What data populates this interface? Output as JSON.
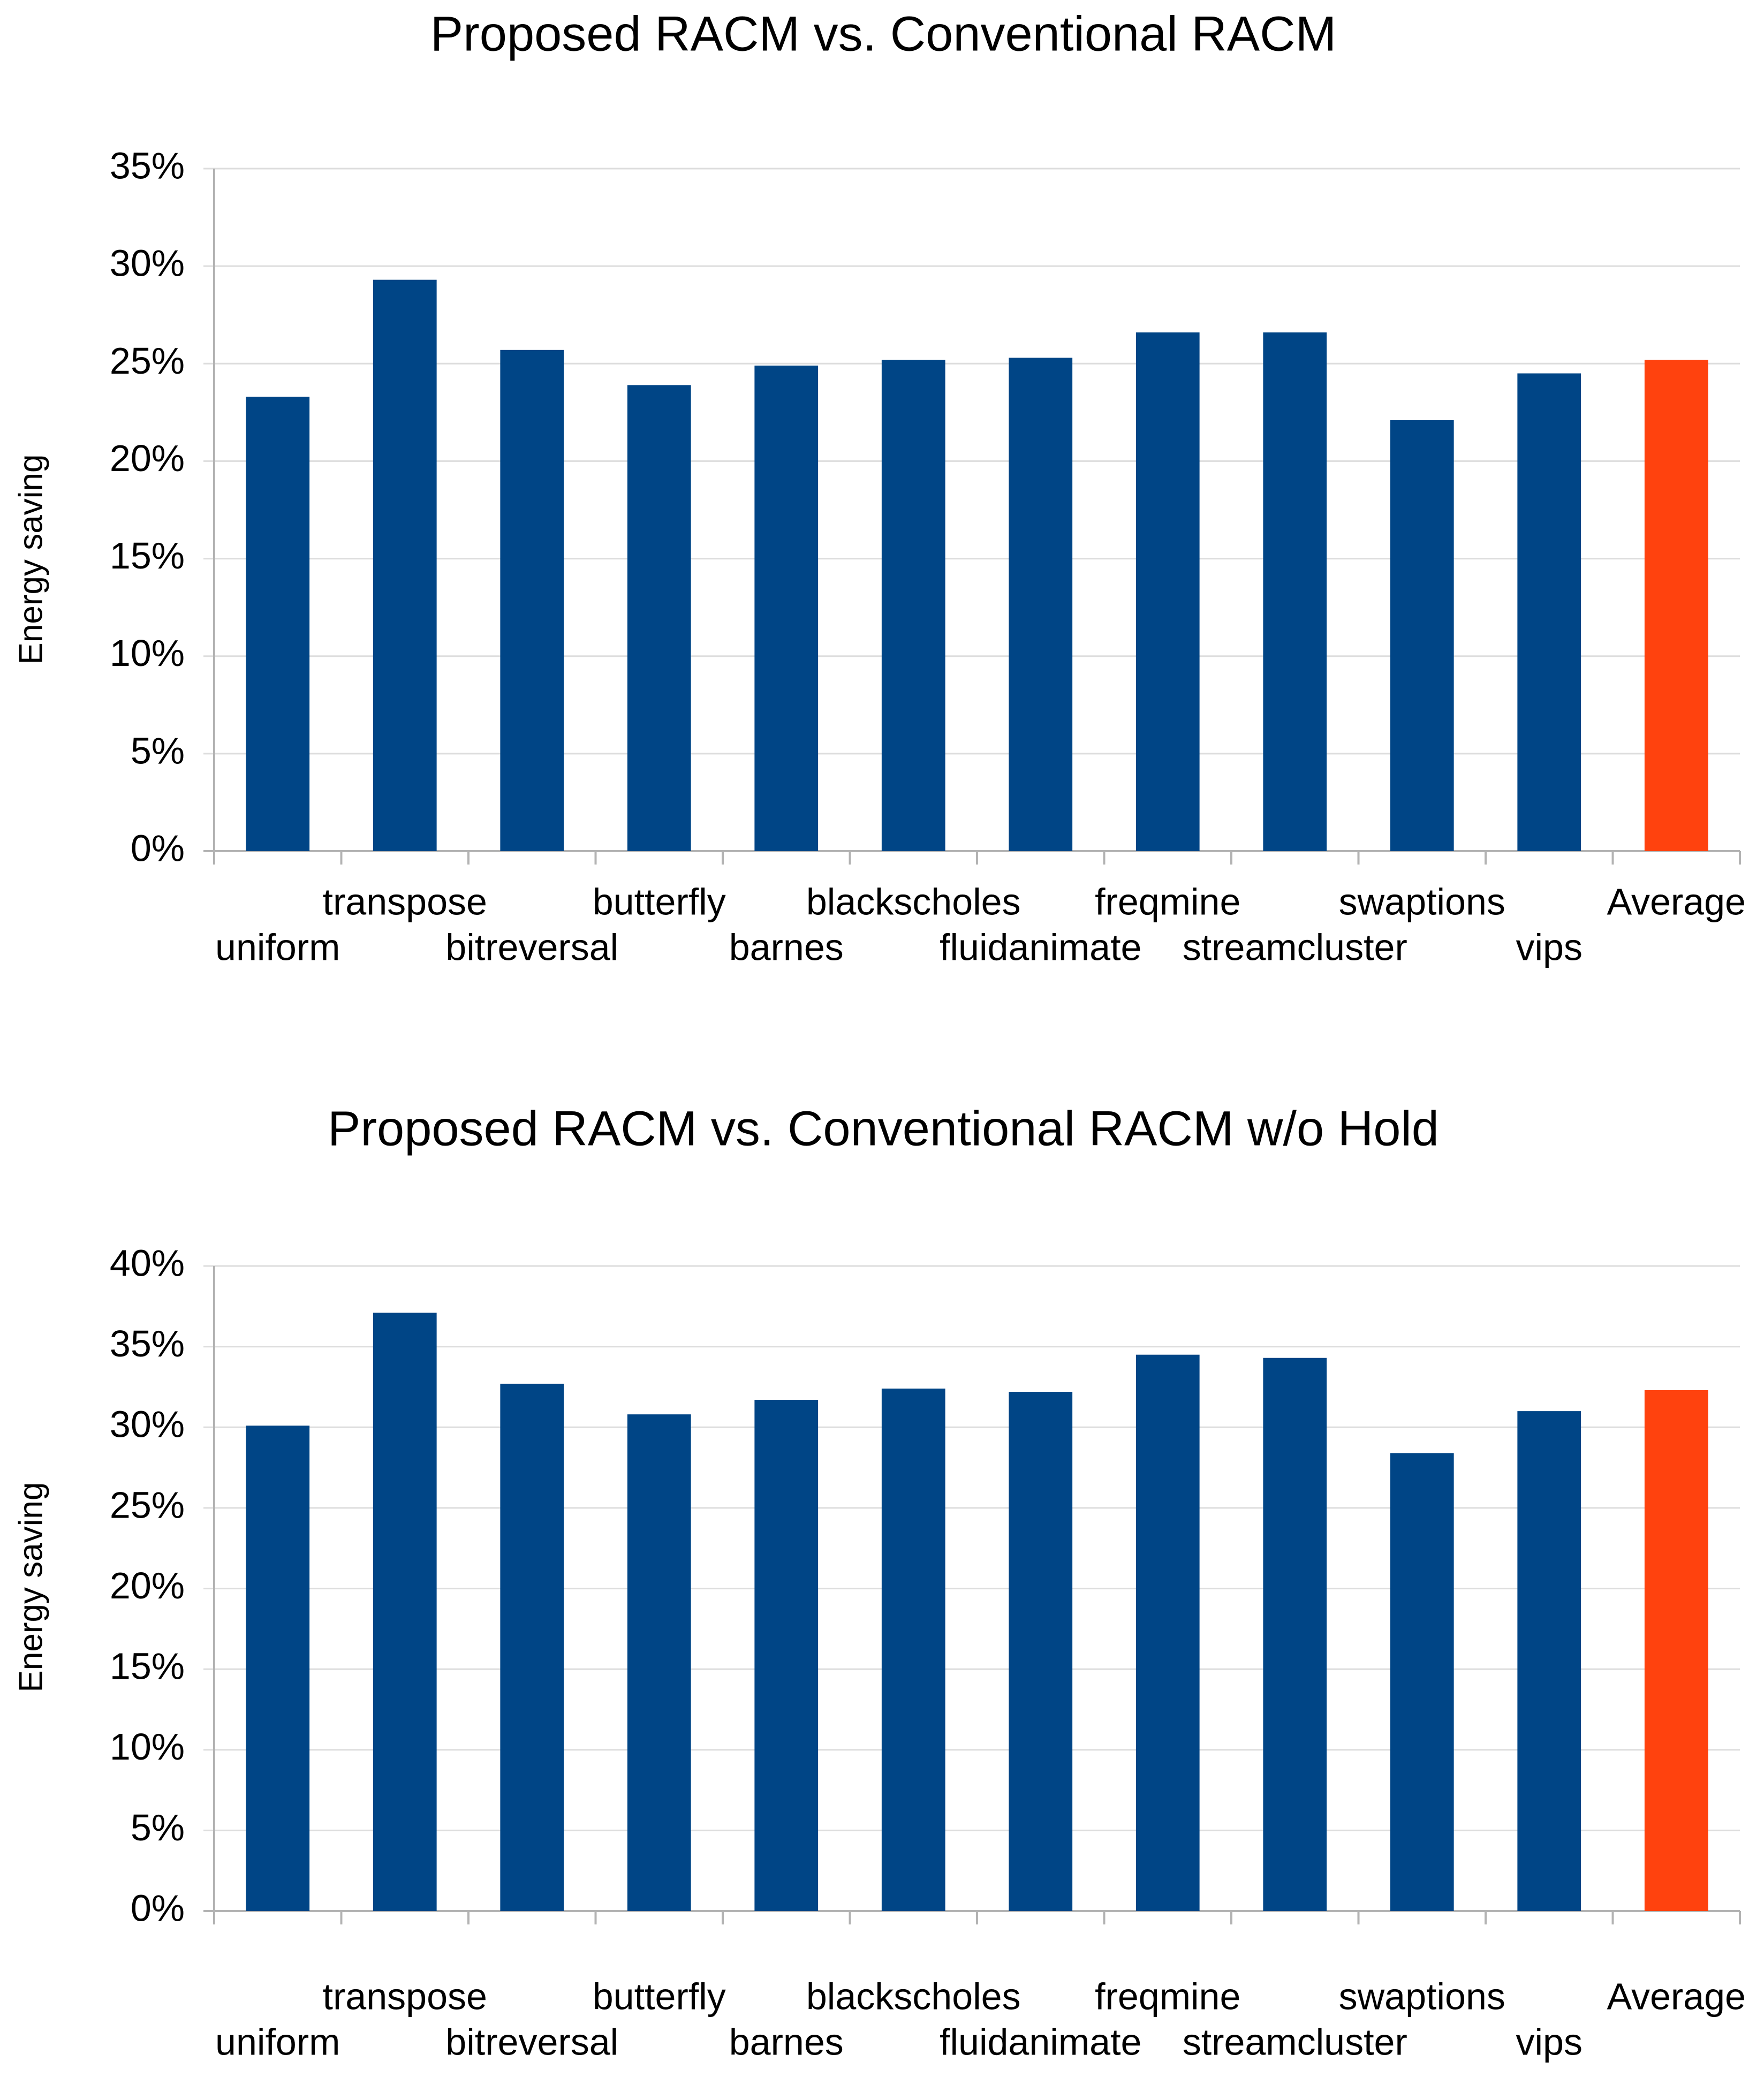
{
  "chart_data": [
    {
      "type": "bar",
      "title": "Proposed RACM vs. Conventional RACM",
      "xlabel": "",
      "ylabel": "Energy saving",
      "ylim": [
        0,
        0.35
      ],
      "yticks": [
        0,
        0.05,
        0.1,
        0.15,
        0.2,
        0.25,
        0.3,
        0.35
      ],
      "ytick_labels": [
        "0%",
        "5%",
        "10%",
        "15%",
        "20%",
        "25%",
        "30%",
        "35%"
      ],
      "grid": true,
      "categories": [
        "uniform",
        "transpose",
        "bitreversal",
        "butterfly",
        "barnes",
        "blackscholes",
        "fluidanimate",
        "freqmine",
        "streamcluster",
        "swaptions",
        "vips",
        "Average"
      ],
      "values": [
        0.233,
        0.293,
        0.257,
        0.239,
        0.249,
        0.252,
        0.253,
        0.266,
        0.266,
        0.221,
        0.245,
        0.252
      ],
      "bar_colors": [
        "#004586",
        "#004586",
        "#004586",
        "#004586",
        "#004586",
        "#004586",
        "#004586",
        "#004586",
        "#004586",
        "#004586",
        "#004586",
        "#ff420e"
      ]
    },
    {
      "type": "bar",
      "title": "Proposed RACM vs. Conventional RACM w/o Hold",
      "xlabel": "",
      "ylabel": "Energy saving",
      "ylim": [
        0,
        0.4
      ],
      "yticks": [
        0,
        0.05,
        0.1,
        0.15,
        0.2,
        0.25,
        0.3,
        0.35,
        0.4
      ],
      "ytick_labels": [
        "0%",
        "5%",
        "10%",
        "15%",
        "20%",
        "25%",
        "30%",
        "35%",
        "40%"
      ],
      "grid": true,
      "categories": [
        "uniform",
        "transpose",
        "bitreversal",
        "butterfly",
        "barnes",
        "blackscholes",
        "fluidanimate",
        "freqmine",
        "streamcluster",
        "swaptions",
        "vips",
        "Average"
      ],
      "values": [
        0.301,
        0.371,
        0.327,
        0.308,
        0.317,
        0.324,
        0.322,
        0.345,
        0.343,
        0.284,
        0.31,
        0.323
      ],
      "bar_colors": [
        "#004586",
        "#004586",
        "#004586",
        "#004586",
        "#004586",
        "#004586",
        "#004586",
        "#004586",
        "#004586",
        "#004586",
        "#004586",
        "#ff420e"
      ]
    }
  ]
}
